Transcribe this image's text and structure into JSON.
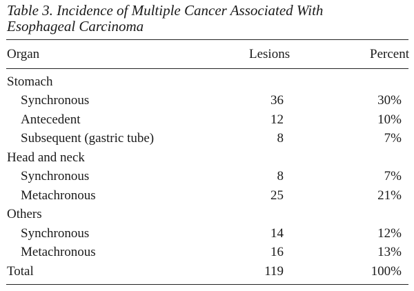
{
  "caption": {
    "line1": "Table 3. Incidence of Multiple Cancer Associated With",
    "line2": "Esophageal Carcinoma"
  },
  "header": {
    "organ": "Organ",
    "lesions": "Lesions",
    "percent": "Percent"
  },
  "rows": [
    {
      "label": "Stomach",
      "lesions": "",
      "percent": "",
      "group": true
    },
    {
      "label": "Synchronous",
      "lesions": "36",
      "percent": "30%",
      "group": false
    },
    {
      "label": "Antecedent",
      "lesions": "12",
      "percent": "10%",
      "group": false
    },
    {
      "label": "Subsequent (gastric tube)",
      "lesions": "8",
      "percent": "7%",
      "group": false
    },
    {
      "label": "Head and neck",
      "lesions": "",
      "percent": "",
      "group": true
    },
    {
      "label": "Synchronous",
      "lesions": "8",
      "percent": "7%",
      "group": false
    },
    {
      "label": "Metachronous",
      "lesions": "25",
      "percent": "21%",
      "group": false
    },
    {
      "label": "Others",
      "lesions": "",
      "percent": "",
      "group": true
    },
    {
      "label": "Synchronous",
      "lesions": "14",
      "percent": "12%",
      "group": false
    },
    {
      "label": "Metachronous",
      "lesions": "16",
      "percent": "13%",
      "group": false
    },
    {
      "label": "Total",
      "lesions": "119",
      "percent": "100%",
      "group": true
    }
  ]
}
